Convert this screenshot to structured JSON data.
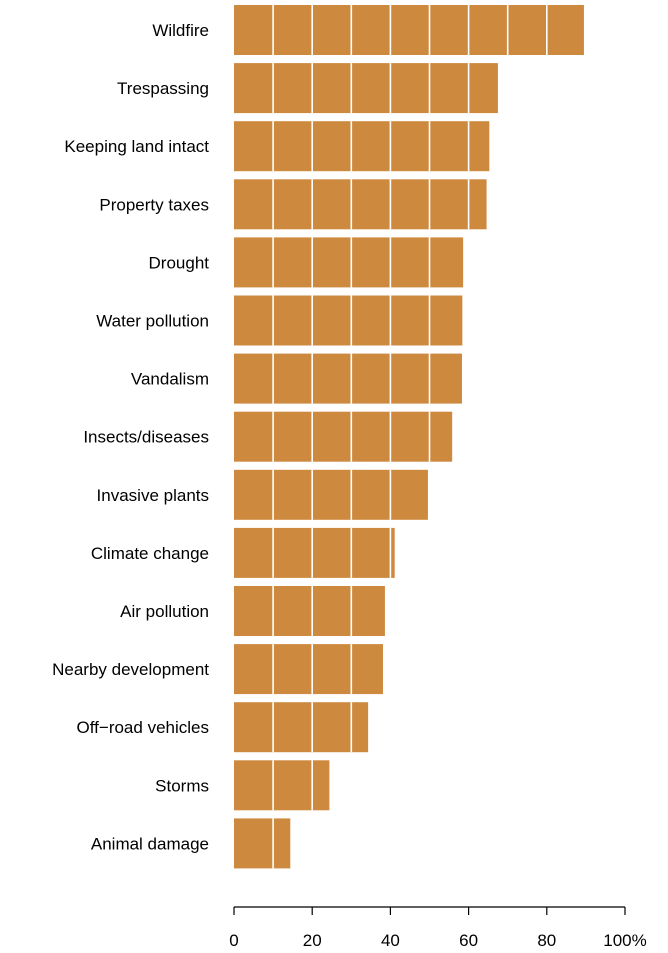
{
  "chart_data": {
    "type": "bar",
    "orientation": "horizontal",
    "categories": [
      "Wildfire",
      "Trespassing",
      "Keeping land intact",
      "Property taxes",
      "Drought",
      "Water pollution",
      "Vandalism",
      "Insects/diseases",
      "Invasive plants",
      "Climate change",
      "Air pollution",
      "Nearby development",
      "Off−road vehicles",
      "Storms",
      "Animal damage"
    ],
    "values": [
      89.5,
      67.5,
      65.3,
      64.6,
      58.6,
      58.4,
      58.3,
      55.8,
      49.6,
      41.1,
      38.6,
      38.1,
      34.3,
      24.4,
      14.4
    ],
    "xlim": [
      0,
      100
    ],
    "x_ticks": [
      "0",
      "20",
      "40",
      "60",
      "80",
      "100%"
    ],
    "xlabel": "",
    "ylabel": "",
    "title": "",
    "grid": false,
    "bar_color": "#cd8a3f",
    "segment_divider_color": "#ffffff",
    "segment_step": 10
  }
}
